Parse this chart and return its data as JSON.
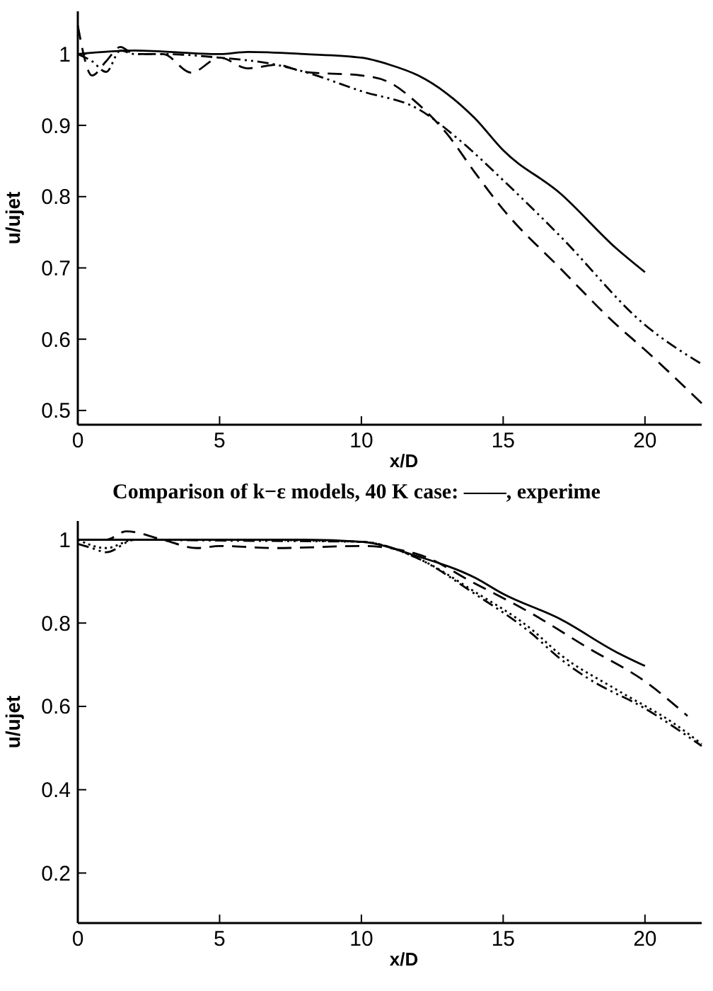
{
  "chart_data": [
    {
      "type": "line",
      "xlabel": "x/D",
      "ylabel": "u/ujet",
      "xlim": [
        0,
        22
      ],
      "ylim": [
        0.48,
        1.06
      ],
      "xticks": [
        0,
        5,
        10,
        15,
        20
      ],
      "yticks": [
        0.5,
        0.6,
        0.7,
        0.8,
        0.9,
        1
      ],
      "annotations": [
        "Comparison of k−ε models, 40 K case: ——, experime"
      ],
      "series": [
        {
          "color": "#000000",
          "line_style": "solid",
          "x": [
            0,
            2,
            5,
            6,
            8,
            10,
            11,
            12,
            13,
            14,
            15,
            17,
            19,
            20
          ],
          "values": [
            1.0,
            1.005,
            1.0,
            1.003,
            1.0,
            0.995,
            0.985,
            0.97,
            0.945,
            0.91,
            0.865,
            0.805,
            0.727,
            0.694
          ]
        },
        {
          "color": "#000000",
          "line_style": "dashed",
          "x": [
            0,
            0.5,
            1,
            1.5,
            2,
            3,
            4,
            5,
            6,
            7,
            8,
            10,
            11,
            12,
            13,
            14,
            15,
            17,
            19,
            20,
            22
          ],
          "values": [
            1.04,
            0.97,
            0.99,
            1.01,
            1.0,
            1.0,
            0.974,
            0.995,
            0.98,
            0.985,
            0.975,
            0.97,
            0.96,
            0.93,
            0.889,
            0.834,
            0.782,
            0.7,
            0.62,
            0.585,
            0.51
          ]
        },
        {
          "color": "#000000",
          "line_style": "dashdot",
          "x": [
            0,
            0.5,
            1,
            1.5,
            2,
            3,
            5,
            7,
            8,
            10,
            12,
            13.5,
            15,
            17,
            20,
            22
          ],
          "values": [
            1.0,
            0.99,
            0.975,
            1.005,
            1.0,
            1.0,
            0.995,
            0.985,
            0.975,
            0.948,
            0.923,
            0.878,
            0.823,
            0.745,
            0.62,
            0.565
          ]
        }
      ]
    },
    {
      "type": "line",
      "xlabel": "x/D",
      "ylabel": "u/ujet",
      "xlim": [
        0,
        22
      ],
      "ylim": [
        0.08,
        1.045
      ],
      "xticks": [
        0,
        5,
        10,
        15,
        20
      ],
      "yticks": [
        0.2,
        0.4,
        0.6,
        0.8,
        1
      ],
      "series": [
        {
          "color": "#000000",
          "line_style": "solid",
          "x": [
            0,
            2,
            5,
            8,
            10,
            12,
            14,
            15,
            17,
            19,
            20
          ],
          "values": [
            1.0,
            1.0,
            1.0,
            1.0,
            0.995,
            0.96,
            0.909,
            0.87,
            0.81,
            0.73,
            0.697
          ]
        },
        {
          "color": "#000000",
          "line_style": "dashed",
          "x": [
            0,
            1,
            1.7,
            3,
            4.2,
            5,
            7,
            10,
            12,
            14,
            16,
            18,
            20,
            21.5
          ],
          "values": [
            1.0,
            1.0,
            1.02,
            1.0,
            0.98,
            0.985,
            0.98,
            0.985,
            0.965,
            0.895,
            0.823,
            0.74,
            0.66,
            0.577
          ]
        },
        {
          "color": "#000000",
          "line_style": "dashdot",
          "x": [
            0,
            0.5,
            1,
            2,
            5,
            10,
            12,
            14,
            16,
            17,
            18,
            20,
            22
          ],
          "values": [
            0.99,
            0.98,
            0.97,
            1.0,
            0.998,
            0.995,
            0.955,
            0.87,
            0.775,
            0.715,
            0.667,
            0.595,
            0.505
          ]
        },
        {
          "color": "#000000",
          "line_style": "dotted",
          "x": [
            0,
            1,
            2,
            5,
            10,
            12,
            14,
            16,
            17,
            19,
            21,
            22
          ],
          "values": [
            1.0,
            0.98,
            1.0,
            1.0,
            0.995,
            0.955,
            0.875,
            0.785,
            0.725,
            0.64,
            0.56,
            0.51
          ]
        }
      ]
    }
  ]
}
